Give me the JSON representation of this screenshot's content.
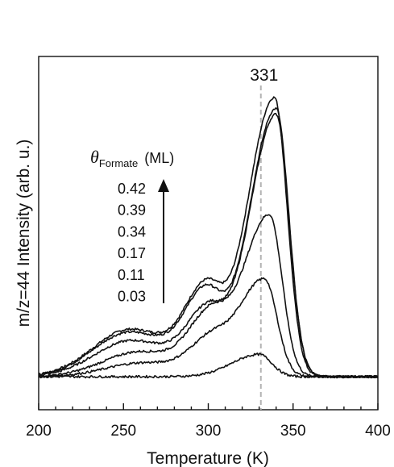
{
  "chart_data": {
    "type": "line",
    "xlabel": "Temperature (K)",
    "ylabel": "m/z=44 Intensity (arb. u.)",
    "xlim": [
      200,
      400
    ],
    "xticks": [
      "200",
      "250",
      "300",
      "350",
      "400"
    ],
    "yticks_shown": false,
    "grid": false,
    "legend": {
      "placement": "left",
      "theta_symbol": "θ",
      "theta_sub": "Formate",
      "theta_unit": "(ML)",
      "values": [
        "0.42",
        "0.39",
        "0.34",
        "0.17",
        "0.11",
        "0.03"
      ]
    },
    "annotation": {
      "label": "331",
      "x": 331,
      "style": "dashed-vertical"
    },
    "series": [
      {
        "coverage": 0.42,
        "peaks": [
          [
            254,
            0.17
          ],
          [
            298,
            0.27
          ],
          [
            339,
            1.0
          ]
        ]
      },
      {
        "coverage": 0.39,
        "peaks": [
          [
            254,
            0.16
          ],
          [
            298,
            0.26
          ],
          [
            340,
            0.96
          ]
        ]
      },
      {
        "coverage": 0.34,
        "peaks": [
          [
            255,
            0.13
          ],
          [
            299,
            0.2
          ],
          [
            340,
            0.94
          ]
        ]
      },
      {
        "coverage": 0.17,
        "peaks": [
          [
            260,
            0.09
          ],
          [
            300,
            0.18
          ],
          [
            336,
            0.58
          ]
        ]
      },
      {
        "coverage": 0.11,
        "peaks": [
          [
            262,
            0.05
          ],
          [
            300,
            0.1
          ],
          [
            333,
            0.35
          ]
        ]
      },
      {
        "coverage": 0.03,
        "peaks": [
          [
            330,
            0.08
          ]
        ]
      }
    ],
    "colors": {
      "line": "#111111",
      "annotation_line": "#b3b3b3"
    }
  }
}
